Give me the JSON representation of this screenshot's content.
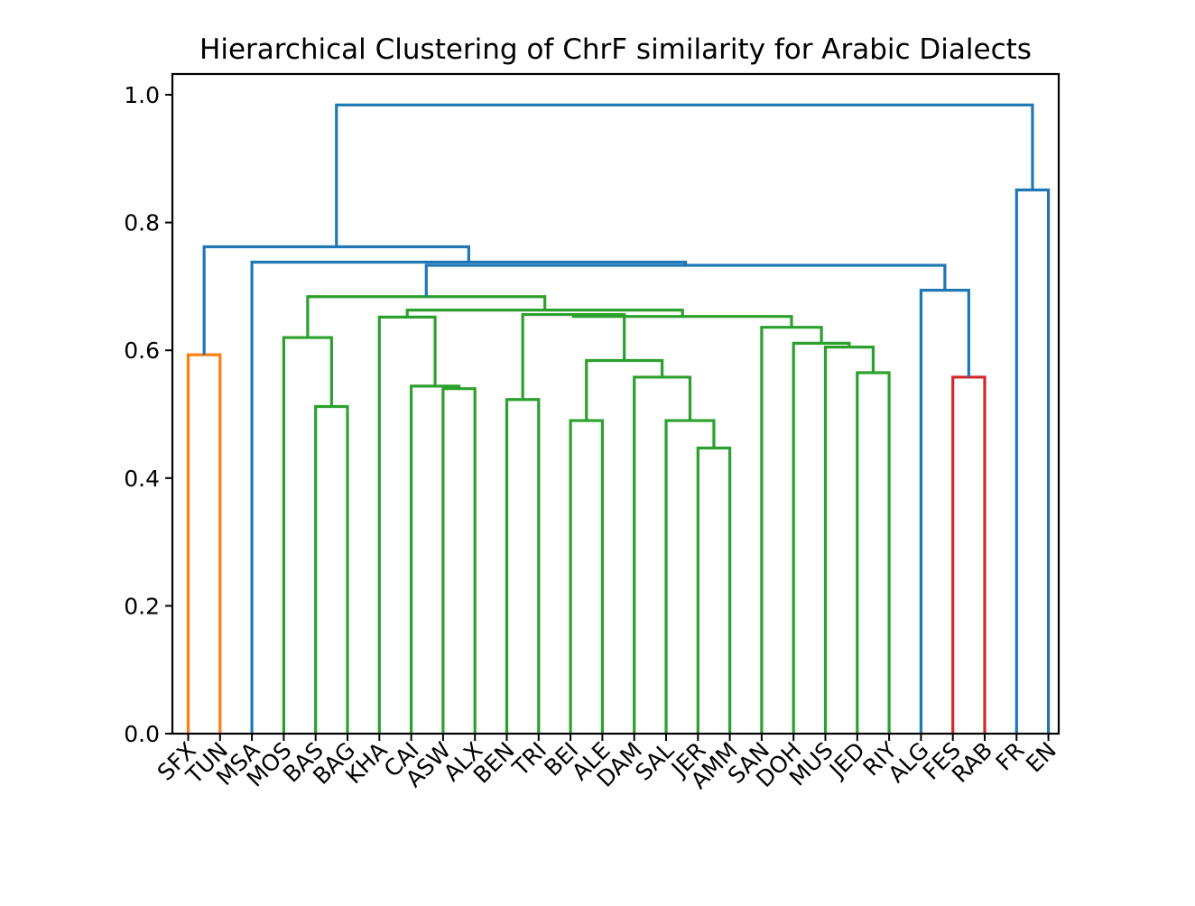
{
  "chart_data": {
    "type": "dendrogram",
    "title": "Hierarchical Clustering of ChrF similarity for Arabic Dialects",
    "xlabel": "",
    "ylabel": "",
    "ylim": [
      0.0,
      1.03
    ],
    "yticks": [
      "0.0",
      "0.2",
      "0.4",
      "0.6",
      "0.8",
      "1.0"
    ],
    "yticks_values": [
      0.0,
      0.2,
      0.4,
      0.6,
      0.8,
      1.0
    ],
    "grid": false,
    "leaves": [
      "SFX",
      "TUN",
      "MSA",
      "MOS",
      "BAS",
      "BAG",
      "KHA",
      "CAI",
      "ASW",
      "ALX",
      "BEN",
      "TRI",
      "BEI",
      "ALE",
      "DAM",
      "SAL",
      "JER",
      "AMM",
      "SAN",
      "DOH",
      "MUS",
      "JED",
      "RIY",
      "ALG",
      "FES",
      "RAB",
      "FR",
      "EN"
    ],
    "colors": {
      "orange": "#ff7f0e",
      "green": "#2ca02c",
      "red": "#d62728",
      "blue": "#1f77b4"
    },
    "merges": [
      {
        "id": "c1",
        "left": "SFX",
        "right": "TUN",
        "height": 0.593,
        "color": "orange"
      },
      {
        "id": "c2",
        "left": "BAS",
        "right": "BAG",
        "height": 0.512,
        "color": "green"
      },
      {
        "id": "c3",
        "left": "MOS",
        "right": "c2",
        "height": 0.62,
        "color": "green"
      },
      {
        "id": "c4",
        "left": "ASW",
        "right": "ALX",
        "height": 0.54,
        "color": "green"
      },
      {
        "id": "c5",
        "left": "CAI",
        "right": "c4",
        "height": 0.544,
        "color": "green"
      },
      {
        "id": "c6",
        "left": "KHA",
        "right": "c5",
        "height": 0.652,
        "color": "green"
      },
      {
        "id": "c7",
        "left": "BEN",
        "right": "TRI",
        "height": 0.523,
        "color": "green"
      },
      {
        "id": "c8",
        "left": "BEI",
        "right": "ALE",
        "height": 0.49,
        "color": "green"
      },
      {
        "id": "c9",
        "left": "JER",
        "right": "AMM",
        "height": 0.447,
        "color": "green"
      },
      {
        "id": "c10",
        "left": "SAL",
        "right": "c9",
        "height": 0.49,
        "color": "green"
      },
      {
        "id": "c11",
        "left": "DAM",
        "right": "c10",
        "height": 0.558,
        "color": "green"
      },
      {
        "id": "c12",
        "left": "c8",
        "right": "c11",
        "height": 0.584,
        "color": "green"
      },
      {
        "id": "c13",
        "left": "JED",
        "right": "RIY",
        "height": 0.565,
        "color": "green"
      },
      {
        "id": "c14",
        "left": "MUS",
        "right": "c13",
        "height": 0.605,
        "color": "green"
      },
      {
        "id": "c15",
        "left": "DOH",
        "right": "c14",
        "height": 0.611,
        "color": "green"
      },
      {
        "id": "c16",
        "left": "SAN",
        "right": "c15",
        "height": 0.636,
        "color": "green"
      },
      {
        "id": "c17",
        "left": "c7",
        "right": "c12",
        "height": 0.656,
        "color": "green"
      },
      {
        "id": "c18",
        "left": "c17",
        "right": "c16",
        "height": 0.653,
        "color": "green"
      },
      {
        "id": "c19",
        "left": "c6",
        "right": "c18",
        "height": 0.663,
        "color": "green"
      },
      {
        "id": "c20",
        "left": "c3",
        "right": "c19",
        "height": 0.684,
        "color": "green"
      },
      {
        "id": "c21",
        "left": "FES",
        "right": "RAB",
        "height": 0.558,
        "color": "red"
      },
      {
        "id": "c22",
        "left": "ALG",
        "right": "c21",
        "height": 0.694,
        "color": "blue"
      },
      {
        "id": "c23",
        "left": "c20",
        "right": "c22",
        "height": 0.733,
        "color": "blue"
      },
      {
        "id": "c24",
        "left": "MSA",
        "right": "c23",
        "height": 0.738,
        "color": "blue"
      },
      {
        "id": "c25",
        "left": "c1",
        "right": "c24",
        "height": 0.762,
        "color": "blue"
      },
      {
        "id": "c26",
        "left": "FR",
        "right": "EN",
        "height": 0.851,
        "color": "blue"
      },
      {
        "id": "c27",
        "left": "c25",
        "right": "c26",
        "height": 0.984,
        "color": "blue"
      }
    ]
  }
}
